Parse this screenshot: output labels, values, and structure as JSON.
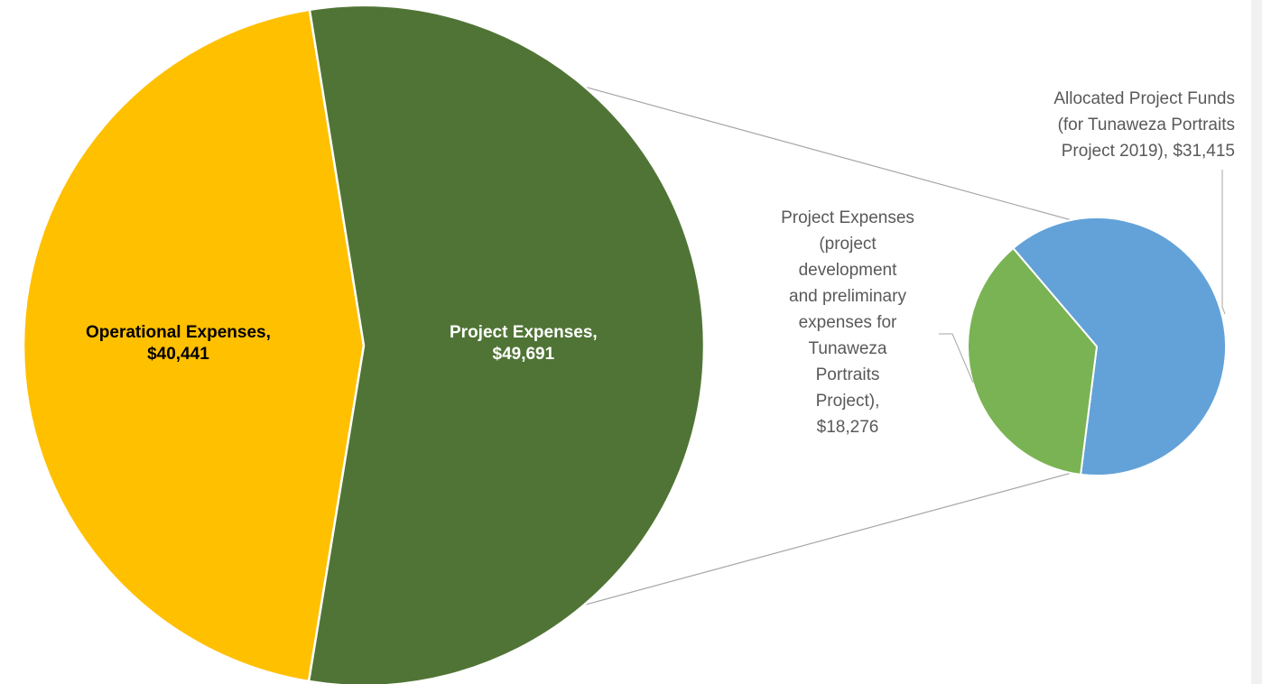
{
  "chart_data": {
    "type": "pie",
    "variant": "pie-of-pie",
    "title": "",
    "main_pie": {
      "slices": [
        {
          "label": "Operational Expenses",
          "value": 40441,
          "value_label": "$40,441",
          "color": "#FFC000"
        },
        {
          "label": "Project Expenses",
          "value": 49691,
          "value_label": "$49,691",
          "color": "#507435"
        }
      ]
    },
    "secondary_pie": {
      "breakdown_of": "Project Expenses",
      "slices": [
        {
          "label": "Allocated Project Funds (for Tunaweza Portraits Project 2019)",
          "value": 31415,
          "value_label": "$31,415",
          "color": "#63A2D8",
          "label_lines": [
            "Allocated Project Funds",
            "(for Tunaweza Portraits",
            "Project 2019),  $31,415"
          ]
        },
        {
          "label": "Project Expenses (project development and preliminary expenses for Tunaweza Portraits Project)",
          "value": 18276,
          "value_label": "$18,276",
          "color": "#7AB353",
          "label_lines": [
            "Project Expenses",
            "(project",
            "development",
            "and preliminary",
            "expenses for",
            "Tunaweza",
            "Portraits",
            "Project),",
            "$18,276"
          ]
        }
      ]
    },
    "legend": "none",
    "colors": {
      "connector": "#A6A6A6",
      "slice_border": "#FFFFFF",
      "sub_label_text": "#595959"
    }
  }
}
